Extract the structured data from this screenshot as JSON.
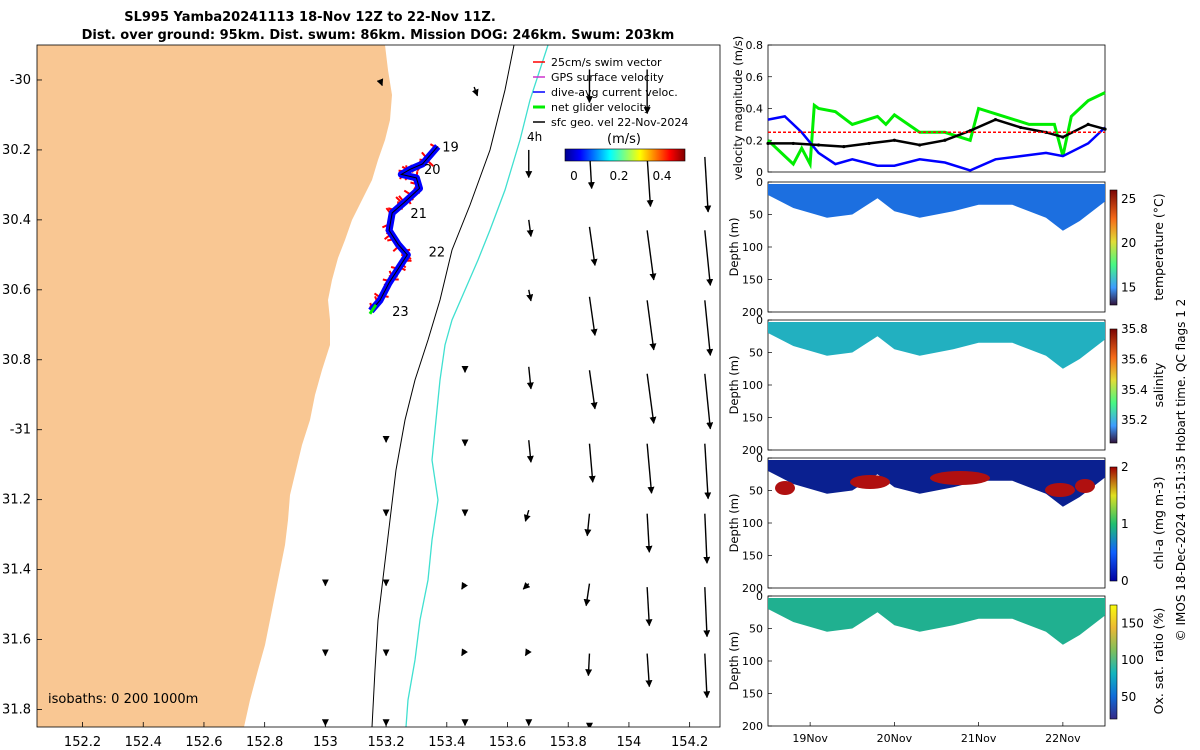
{
  "title": {
    "line1": "SL995 Yamba20241113 18-Nov 12Z to 22-Nov 11Z.",
    "line2": "Dist. over ground: 95km. Dist. swum: 86km. Mission DOG: 246km. Swum: 203km"
  },
  "side_credit": "© IMOS 18-Dec-2024 01:51:35 Hobart time. QC flags 1  2",
  "colors": {
    "land": "#f9c793",
    "swim": "#ff0000",
    "gps": "#cc33cc",
    "dive_avg": "#0000ff",
    "net": "#00ee00",
    "geo": "#000000",
    "isobath_0_200": "#000000",
    "isobath_1000": "#40e0d0"
  },
  "chart_data": [
    {
      "type": "map",
      "name": "glider-track-map",
      "xlim": [
        152.05,
        154.3
      ],
      "ylim": [
        -31.85,
        -29.9
      ],
      "x_ticks": [
        152.2,
        152.4,
        152.6,
        152.8,
        153,
        153.2,
        153.4,
        153.6,
        153.8,
        154,
        154.2
      ],
      "x_tick_labels": [
        "152.2",
        "152.4",
        "152.6",
        "152.8",
        "153",
        "153.2",
        "153.4",
        "153.6",
        "153.8",
        "154",
        "154.2"
      ],
      "y_ticks": [
        -30,
        -30.2,
        -30.4,
        -30.6,
        -30.8,
        -31,
        -31.2,
        -31.4,
        -31.6,
        -31.8
      ],
      "y_tick_labels": [
        "-30",
        "30.2",
        "30.4",
        "30.6",
        "30.8",
        "-31",
        "31.2",
        "31.4",
        "31.6",
        "31.8"
      ],
      "legend": [
        {
          "key": "swim",
          "label": "25cm/s swim vector"
        },
        {
          "key": "gps",
          "label": "GPS surface velocity"
        },
        {
          "key": "dive_avg",
          "label": "dive-avg current veloc."
        },
        {
          "key": "net",
          "label": "net glider velocity"
        },
        {
          "key": "geo",
          "label": "sfc geo. vel 22-Nov-2024"
        }
      ],
      "isobath_label": "isobaths: 0   200   1000m",
      "time_label": "4h",
      "colorbar": {
        "title": "(m/s)",
        "ticks": [
          "0",
          "0.2",
          "0.4"
        ],
        "range": [
          0,
          0.5
        ]
      },
      "track": [
        {
          "lon": 153.37,
          "lat": -30.19
        },
        {
          "lon": 153.34,
          "lat": -30.22
        },
        {
          "lon": 153.32,
          "lat": -30.24
        },
        {
          "lon": 153.28,
          "lat": -30.255
        },
        {
          "lon": 153.25,
          "lat": -30.27
        },
        {
          "lon": 153.3,
          "lat": -30.28
        },
        {
          "lon": 153.31,
          "lat": -30.31
        },
        {
          "lon": 153.26,
          "lat": -30.35
        },
        {
          "lon": 153.22,
          "lat": -30.38
        },
        {
          "lon": 153.21,
          "lat": -30.43
        },
        {
          "lon": 153.24,
          "lat": -30.47
        },
        {
          "lon": 153.27,
          "lat": -30.5
        },
        {
          "lon": 153.24,
          "lat": -30.54
        },
        {
          "lon": 153.21,
          "lat": -30.58
        },
        {
          "lon": 153.18,
          "lat": -30.63
        },
        {
          "lon": 153.15,
          "lat": -30.66
        }
      ],
      "day_markers": [
        {
          "label": "19",
          "lon": 153.385,
          "lat": -30.19
        },
        {
          "label": "20",
          "lon": 153.325,
          "lat": -30.255
        },
        {
          "label": "21",
          "lon": 153.28,
          "lat": -30.38
        },
        {
          "label": "22",
          "lon": 153.34,
          "lat": -30.49
        },
        {
          "label": "23",
          "lon": 153.22,
          "lat": -30.66
        }
      ],
      "geo_vectors": [
        {
          "lon": 153.18,
          "lat": -30.0,
          "u": 0.02,
          "v": -0.05
        },
        {
          "lon": 153.49,
          "lat": -30.02,
          "u": 0.03,
          "v": -0.08
        },
        {
          "lon": 153.87,
          "lat": -29.97,
          "u": 0.0,
          "v": -0.3
        },
        {
          "lon": 154.06,
          "lat": -29.97,
          "u": 0.0,
          "v": -0.4
        },
        {
          "lon": 153.67,
          "lat": -30.2,
          "u": 0.0,
          "v": -0.25
        },
        {
          "lon": 153.87,
          "lat": -30.2,
          "u": 0.02,
          "v": -0.35
        },
        {
          "lon": 154.06,
          "lat": -30.22,
          "u": 0.03,
          "v": -0.45
        },
        {
          "lon": 154.25,
          "lat": -30.22,
          "u": 0.03,
          "v": -0.5
        },
        {
          "lon": 153.67,
          "lat": -30.4,
          "u": 0.02,
          "v": -0.15
        },
        {
          "lon": 153.87,
          "lat": -30.42,
          "u": 0.05,
          "v": -0.35
        },
        {
          "lon": 154.06,
          "lat": -30.43,
          "u": 0.06,
          "v": -0.45
        },
        {
          "lon": 154.25,
          "lat": -30.43,
          "u": 0.05,
          "v": -0.5
        },
        {
          "lon": 153.67,
          "lat": -30.6,
          "u": 0.02,
          "v": -0.1
        },
        {
          "lon": 153.87,
          "lat": -30.62,
          "u": 0.05,
          "v": -0.35
        },
        {
          "lon": 154.06,
          "lat": -30.63,
          "u": 0.06,
          "v": -0.45
        },
        {
          "lon": 154.25,
          "lat": -30.63,
          "u": 0.05,
          "v": -0.5
        },
        {
          "lon": 153.46,
          "lat": -30.82,
          "u": 0.0,
          "v": -0.05
        },
        {
          "lon": 153.67,
          "lat": -30.82,
          "u": 0.02,
          "v": -0.2
        },
        {
          "lon": 153.87,
          "lat": -30.83,
          "u": 0.05,
          "v": -0.35
        },
        {
          "lon": 154.06,
          "lat": -30.84,
          "u": 0.06,
          "v": -0.45
        },
        {
          "lon": 154.25,
          "lat": -30.84,
          "u": 0.05,
          "v": -0.5
        },
        {
          "lon": 153.2,
          "lat": -31.02,
          "u": 0.0,
          "v": -0.05
        },
        {
          "lon": 153.46,
          "lat": -31.03,
          "u": 0.0,
          "v": -0.05
        },
        {
          "lon": 153.67,
          "lat": -31.03,
          "u": 0.02,
          "v": -0.2
        },
        {
          "lon": 153.87,
          "lat": -31.04,
          "u": 0.03,
          "v": -0.35
        },
        {
          "lon": 154.06,
          "lat": -31.04,
          "u": 0.04,
          "v": -0.45
        },
        {
          "lon": 154.25,
          "lat": -31.04,
          "u": 0.03,
          "v": -0.5
        },
        {
          "lon": 153.2,
          "lat": -31.23,
          "u": 0.0,
          "v": -0.05
        },
        {
          "lon": 153.46,
          "lat": -31.23,
          "u": 0.0,
          "v": -0.05
        },
        {
          "lon": 153.67,
          "lat": -31.23,
          "u": -0.03,
          "v": -0.1
        },
        {
          "lon": 153.87,
          "lat": -31.24,
          "u": -0.02,
          "v": -0.2
        },
        {
          "lon": 154.06,
          "lat": -31.24,
          "u": 0.02,
          "v": -0.35
        },
        {
          "lon": 154.25,
          "lat": -31.24,
          "u": 0.02,
          "v": -0.45
        },
        {
          "lon": 153.0,
          "lat": -31.43,
          "u": 0.0,
          "v": -0.05
        },
        {
          "lon": 153.2,
          "lat": -31.43,
          "u": 0.0,
          "v": -0.05
        },
        {
          "lon": 153.46,
          "lat": -31.44,
          "u": -0.03,
          "v": -0.05
        },
        {
          "lon": 153.67,
          "lat": -31.44,
          "u": -0.05,
          "v": -0.05
        },
        {
          "lon": 153.87,
          "lat": -31.44,
          "u": -0.03,
          "v": -0.2
        },
        {
          "lon": 154.06,
          "lat": -31.45,
          "u": 0.02,
          "v": -0.35
        },
        {
          "lon": 154.25,
          "lat": -31.45,
          "u": 0.02,
          "v": -0.45
        },
        {
          "lon": 153.0,
          "lat": -31.63,
          "u": 0.0,
          "v": -0.05
        },
        {
          "lon": 153.2,
          "lat": -31.63,
          "u": 0.0,
          "v": -0.05
        },
        {
          "lon": 153.46,
          "lat": -31.63,
          "u": -0.03,
          "v": -0.05
        },
        {
          "lon": 153.67,
          "lat": -31.63,
          "u": -0.03,
          "v": -0.05
        },
        {
          "lon": 153.87,
          "lat": -31.64,
          "u": -0.01,
          "v": -0.2
        },
        {
          "lon": 154.06,
          "lat": -31.64,
          "u": 0.02,
          "v": -0.3
        },
        {
          "lon": 154.25,
          "lat": -31.64,
          "u": 0.02,
          "v": -0.4
        },
        {
          "lon": 153.0,
          "lat": -31.83,
          "u": 0.0,
          "v": -0.05
        },
        {
          "lon": 153.2,
          "lat": -31.83,
          "u": 0.0,
          "v": -0.05
        },
        {
          "lon": 153.46,
          "lat": -31.83,
          "u": 0.0,
          "v": -0.05
        },
        {
          "lon": 153.67,
          "lat": -31.83,
          "u": 0.0,
          "v": -0.05
        },
        {
          "lon": 153.87,
          "lat": -31.84,
          "u": 0.0,
          "v": -0.05
        }
      ]
    },
    {
      "type": "line",
      "name": "velocity-magnitude",
      "ylabel": "velocity magnitude (m/s)",
      "ylim": [
        0,
        0.8
      ],
      "y_ticks": [
        "0",
        "0.2",
        "0.4",
        "0.6",
        "0.8"
      ],
      "xlim": [
        18.5,
        22.5
      ],
      "series": [
        {
          "name": "net glider velocity",
          "color": "#00ee00",
          "x": [
            18.5,
            18.6,
            18.7,
            18.8,
            18.9,
            19.0,
            19.05,
            19.1,
            19.3,
            19.5,
            19.8,
            19.9,
            20.0,
            20.3,
            20.6,
            20.9,
            21.0,
            21.3,
            21.6,
            21.9,
            22.0,
            22.1,
            22.3,
            22.5
          ],
          "y": [
            0.2,
            0.15,
            0.1,
            0.05,
            0.15,
            0.05,
            0.42,
            0.4,
            0.38,
            0.3,
            0.35,
            0.3,
            0.36,
            0.25,
            0.25,
            0.2,
            0.4,
            0.35,
            0.3,
            0.3,
            0.1,
            0.35,
            0.45,
            0.5
          ]
        },
        {
          "name": "dive-avg current veloc.",
          "color": "#0000ff",
          "x": [
            18.5,
            18.7,
            18.9,
            19.1,
            19.3,
            19.5,
            19.8,
            20.0,
            20.3,
            20.6,
            20.9,
            21.2,
            21.5,
            21.8,
            22.0,
            22.3,
            22.5
          ],
          "y": [
            0.33,
            0.35,
            0.25,
            0.12,
            0.05,
            0.08,
            0.04,
            0.04,
            0.08,
            0.06,
            0.01,
            0.08,
            0.1,
            0.12,
            0.1,
            0.18,
            0.28
          ]
        },
        {
          "name": "sfc geo. vel",
          "color": "#000000",
          "x": [
            18.5,
            18.8,
            19.1,
            19.4,
            19.7,
            20.0,
            20.3,
            20.6,
            20.9,
            21.2,
            21.5,
            21.8,
            22.0,
            22.3,
            22.5
          ],
          "y": [
            0.18,
            0.18,
            0.17,
            0.16,
            0.18,
            0.2,
            0.17,
            0.2,
            0.26,
            0.33,
            0.28,
            0.25,
            0.22,
            0.3,
            0.27
          ]
        },
        {
          "name": "25cm/s swim vector",
          "color": "#ff0000",
          "x": [
            18.5,
            22.5
          ],
          "y": [
            0.25,
            0.25
          ]
        }
      ]
    },
    {
      "type": "heatmap",
      "name": "temperature-section",
      "colorbar_label": "temperature (°C)",
      "colorbar_ticks": [
        "25",
        "20",
        "15"
      ],
      "ylabel": "Depth (m)",
      "y_ticks": [
        "0",
        "50",
        "100",
        "150",
        "200"
      ],
      "range": [
        13,
        26
      ]
    },
    {
      "type": "heatmap",
      "name": "salinity-section",
      "colorbar_label": "salinity",
      "colorbar_ticks": [
        "35.8",
        "35.6",
        "35.4",
        "35.2"
      ],
      "ylabel": "Depth (m)",
      "y_ticks": [
        "0",
        "50",
        "100",
        "150",
        "200"
      ],
      "range": [
        35.05,
        35.8
      ]
    },
    {
      "type": "heatmap",
      "name": "chlorophyll-section",
      "colorbar_label": "chl-a (mg m-3)",
      "colorbar_ticks": [
        "2",
        "1",
        "0"
      ],
      "ylabel": "Depth (m)",
      "y_ticks": [
        "0",
        "50",
        "100",
        "150",
        "200"
      ],
      "range": [
        0,
        2
      ]
    },
    {
      "type": "heatmap",
      "name": "oxygen-section",
      "colorbar_label": "Ox. sat. ratio (%)",
      "colorbar_ticks": [
        "150",
        "100",
        "50"
      ],
      "ylabel": "Depth (m)",
      "y_ticks": [
        "0",
        "50",
        "100",
        "150",
        "200"
      ],
      "x_tick_labels": [
        "19Nov",
        "20Nov",
        "21Nov",
        "22Nov"
      ],
      "range": [
        20,
        175
      ]
    }
  ]
}
